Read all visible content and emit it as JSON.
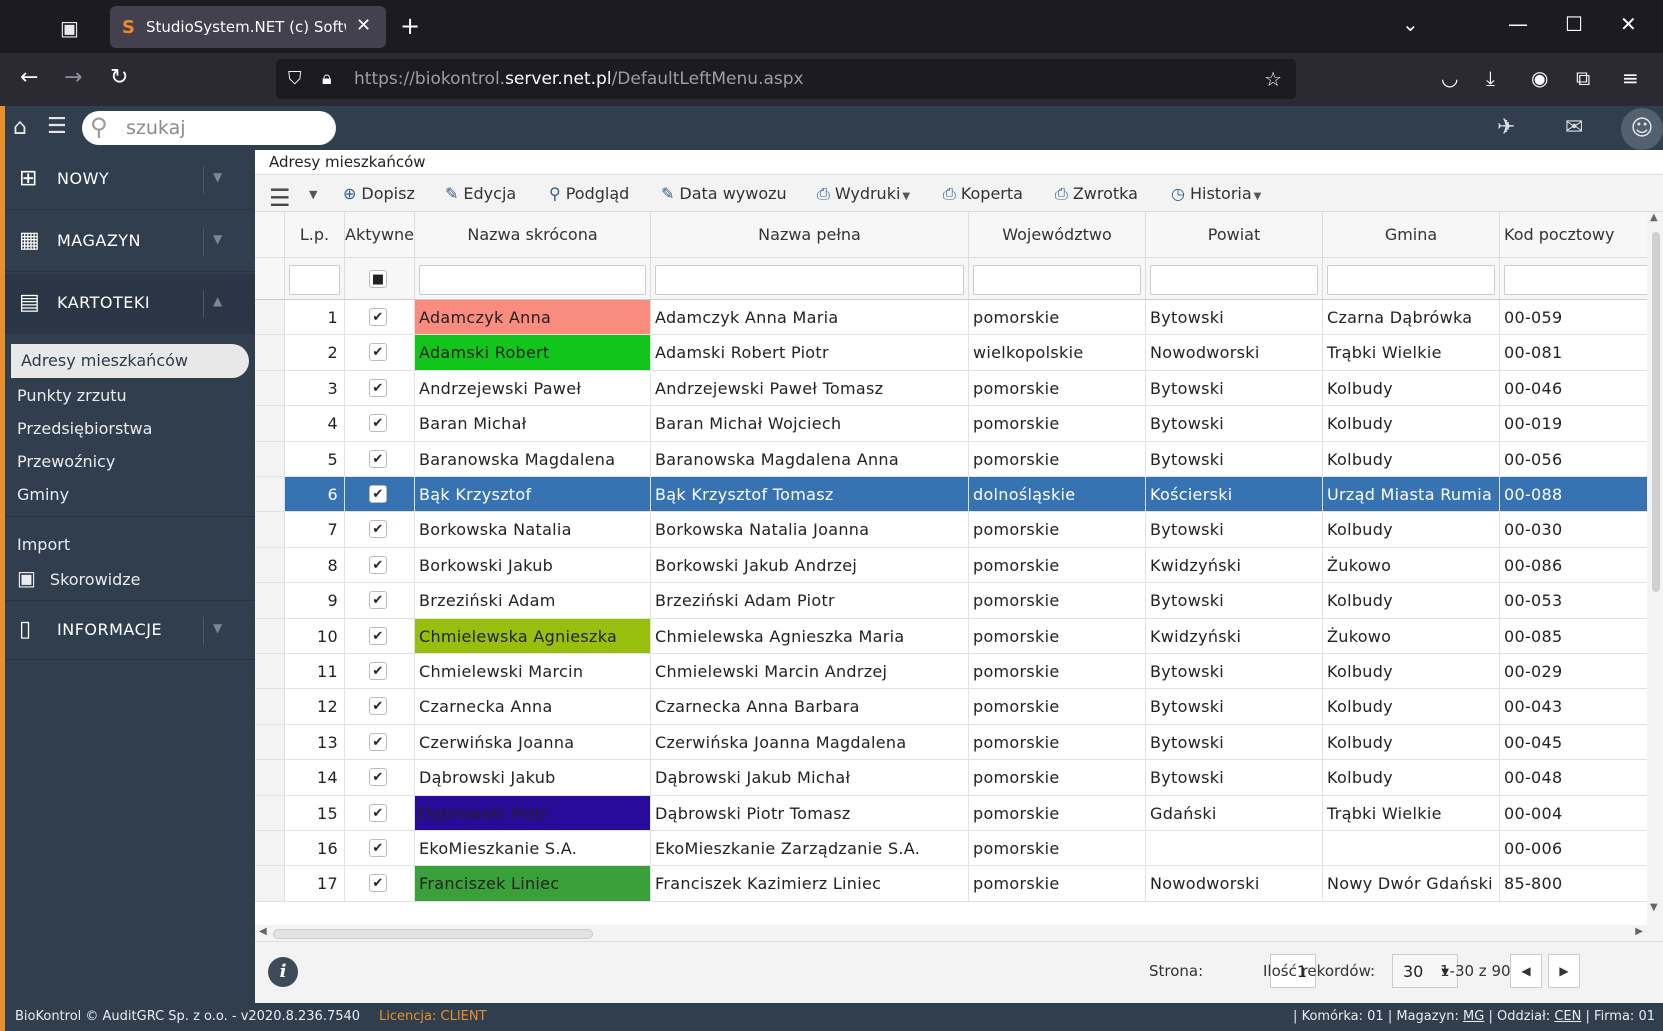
{
  "browser": {
    "tab_title": "StudioSystem.NET (c) SoftwareS",
    "url_prefix": "https://biokontrol.",
    "url_domain": "server.net.pl",
    "url_path": "/DefaultLeftMenu.aspx"
  },
  "app": {
    "search_placeholder": "szukaj"
  },
  "sidebar": {
    "sections": [
      {
        "label": "NOWY"
      },
      {
        "label": "MAGAZYN"
      },
      {
        "label": "KARTOTEKI"
      },
      {
        "label": "INFORMACJE"
      }
    ],
    "kartoteki_items": [
      "Adresy mieszkańców",
      "Punkty zrzutu",
      "Przedsiębiorstwa",
      "Przewoźnicy",
      "Gminy"
    ],
    "extra_items": [
      "Import",
      "Skorowidze"
    ]
  },
  "page": {
    "title": "Adresy mieszkańców"
  },
  "toolbar": {
    "buttons": [
      "Dopisz",
      "Edycja",
      "Podgląd",
      "Data wywozu",
      "Wydruki",
      "Koperta",
      "Zwrotka",
      "Historia"
    ]
  },
  "grid": {
    "columns": [
      "L.p.",
      "Aktywne",
      "Nazwa skrócona",
      "Nazwa pełna",
      "Województwo",
      "Powiat",
      "Gmina",
      "Kod pocztowy"
    ],
    "rows": [
      {
        "lp": "1",
        "short": "Adamczyk Anna",
        "full": "Adamczyk Anna Maria",
        "woj": "pomorskie",
        "powiat": "Bytowski",
        "gmina": "Czarna Dąbrówka",
        "kod": "00-059",
        "color": "#f98b7f"
      },
      {
        "lp": "2",
        "short": "Adamski Robert",
        "full": "Adamski Robert Piotr",
        "woj": "wielkopolskie",
        "powiat": "Nowodworski",
        "gmina": "Trąbki Wielkie",
        "kod": "00-081",
        "color": "#12c51a"
      },
      {
        "lp": "3",
        "short": "Andrzejewski Paweł",
        "full": "Andrzejewski Paweł Tomasz",
        "woj": "pomorskie",
        "powiat": "Bytowski",
        "gmina": "Kolbudy",
        "kod": "00-046",
        "color": ""
      },
      {
        "lp": "4",
        "short": "Baran Michał",
        "full": "Baran Michał Wojciech",
        "woj": "pomorskie",
        "powiat": "Bytowski",
        "gmina": "Kolbudy",
        "kod": "00-019",
        "color": ""
      },
      {
        "lp": "5",
        "short": "Baranowska Magdalena",
        "full": "Baranowska Magdalena Anna",
        "woj": "pomorskie",
        "powiat": "Bytowski",
        "gmina": "Kolbudy",
        "kod": "00-056",
        "color": ""
      },
      {
        "lp": "6",
        "short": "Bąk Krzysztof",
        "full": "Bąk Krzysztof Tomasz",
        "woj": "dolnośląskie",
        "powiat": "Kościerski",
        "gmina": "Urząd Miasta Rumia",
        "kod": "00-088",
        "color": ""
      },
      {
        "lp": "7",
        "short": "Borkowska Natalia",
        "full": "Borkowska Natalia Joanna",
        "woj": "pomorskie",
        "powiat": "Bytowski",
        "gmina": "Kolbudy",
        "kod": "00-030",
        "color": ""
      },
      {
        "lp": "8",
        "short": "Borkowski Jakub",
        "full": "Borkowski Jakub Andrzej",
        "woj": "pomorskie",
        "powiat": "Kwidzyński",
        "gmina": "Żukowo",
        "kod": "00-086",
        "color": ""
      },
      {
        "lp": "9",
        "short": "Brzeziński Adam",
        "full": "Brzeziński Adam Piotr",
        "woj": "pomorskie",
        "powiat": "Bytowski",
        "gmina": "Kolbudy",
        "kod": "00-053",
        "color": ""
      },
      {
        "lp": "10",
        "short": "Chmielewska Agnieszka",
        "full": "Chmielewska Agnieszka Maria",
        "woj": "pomorskie",
        "powiat": "Kwidzyński",
        "gmina": "Żukowo",
        "kod": "00-085",
        "color": "#98bf0e"
      },
      {
        "lp": "11",
        "short": "Chmielewski Marcin",
        "full": "Chmielewski Marcin Andrzej",
        "woj": "pomorskie",
        "powiat": "Bytowski",
        "gmina": "Kolbudy",
        "kod": "00-029",
        "color": ""
      },
      {
        "lp": "12",
        "short": "Czarnecka Anna",
        "full": "Czarnecka Anna Barbara",
        "woj": "pomorskie",
        "powiat": "Bytowski",
        "gmina": "Kolbudy",
        "kod": "00-043",
        "color": ""
      },
      {
        "lp": "13",
        "short": "Czerwińska Joanna",
        "full": "Czerwińska Joanna Magdalena",
        "woj": "pomorskie",
        "powiat": "Bytowski",
        "gmina": "Kolbudy",
        "kod": "00-045",
        "color": ""
      },
      {
        "lp": "14",
        "short": "Dąbrowski Jakub",
        "full": "Dąbrowski Jakub Michał",
        "woj": "pomorskie",
        "powiat": "Bytowski",
        "gmina": "Kolbudy",
        "kod": "00-048",
        "color": ""
      },
      {
        "lp": "15",
        "short": "Dąbrowski Piotr",
        "full": "Dąbrowski Piotr Tomasz",
        "woj": "pomorskie",
        "powiat": "Gdański",
        "gmina": "Trąbki Wielkie",
        "kod": "00-004",
        "color": "#2a0a99"
      },
      {
        "lp": "16",
        "short": "EkoMieszkanie S.A.",
        "full": "EkoMieszkanie Zarządzanie S.A.",
        "woj": "pomorskie",
        "powiat": "",
        "gmina": "",
        "kod": "00-006",
        "color": ""
      },
      {
        "lp": "17",
        "short": "Franciszek Liniec",
        "full": "Franciszek Kazimierz Liniec",
        "woj": "pomorskie",
        "powiat": "Nowodworski",
        "gmina": "Nowy Dwór Gdański",
        "kod": "85-800",
        "color": "#3aa13a"
      }
    ]
  },
  "pager": {
    "page_label": "Strona:",
    "page_value": "1",
    "records_label": "Ilość rekordów:",
    "records_value": "30",
    "range": "1-30 z 90"
  },
  "status": {
    "left": "BioKontrol © AuditGRC Sp. z o.o. - v2020.8.236.7540",
    "license_label": "Licencja:",
    "license_value": "CLIENT",
    "komorka_label": "Komórka:",
    "komorka": "01",
    "magazyn_label": "Magazyn:",
    "magazyn": "MG",
    "oddzial_label": "Oddział:",
    "oddzial": "CEN",
    "firma_label": "Firma:",
    "firma": "01"
  }
}
